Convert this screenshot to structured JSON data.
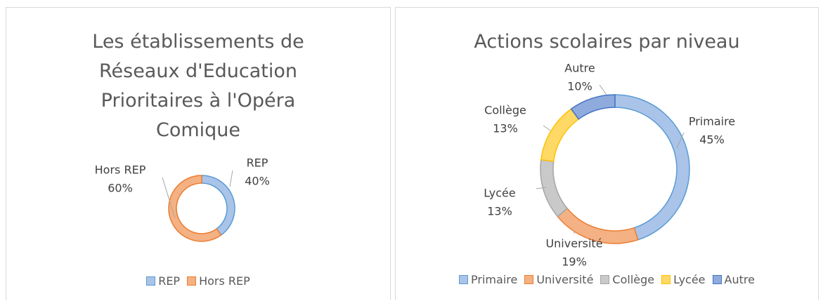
{
  "chart_data": [
    {
      "type": "donut",
      "title": "Les établissements de Réseaux d'Education Prioritaires à l'Opéra Comique",
      "categories": [
        "REP",
        "Hors REP"
      ],
      "values": [
        40,
        60
      ],
      "value_labels": [
        "40%",
        "60%"
      ],
      "colors": [
        "#a9c4e8",
        "#f4b183"
      ],
      "border_colors": [
        "#5b9bd5",
        "#ed7d31"
      ],
      "legend": "bottom"
    },
    {
      "type": "donut",
      "title": "Actions scolaires par niveau",
      "categories": [
        "Primaire",
        "Université",
        "Collège",
        "Lycée",
        "Autre"
      ],
      "values": [
        45,
        19,
        13,
        13,
        10
      ],
      "value_labels": [
        "45%",
        "19%",
        "13%",
        "13%",
        "10%"
      ],
      "colors": [
        "#a9c4e8",
        "#f4b183",
        "#c9c9c9",
        "#ffd966",
        "#8faadc"
      ],
      "border_colors": [
        "#5b9bd5",
        "#ed7d31",
        "#a5a5a5",
        "#ffc000",
        "#4472c4"
      ],
      "legend": "bottom"
    }
  ]
}
